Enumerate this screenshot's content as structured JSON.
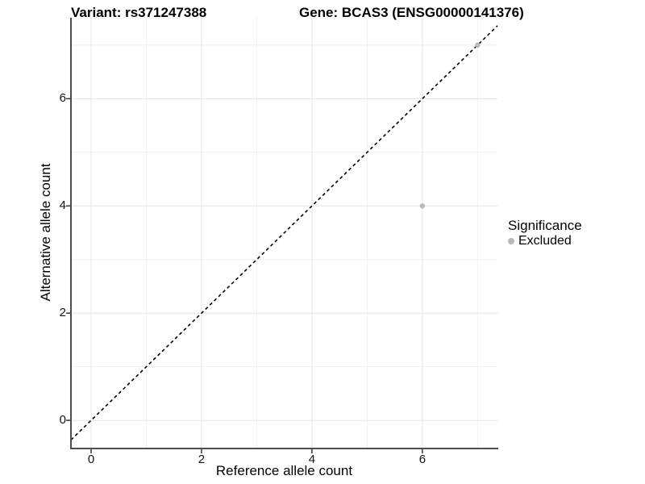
{
  "chart_data": {
    "type": "scatter",
    "title_left": "Variant: rs371247388",
    "title_right": "Gene: BCAS3 (ENSG00000141376)",
    "xlabel": "Reference allele count",
    "ylabel": "Alternative allele count",
    "xlim": [
      -0.365,
      7.36
    ],
    "ylim": [
      -0.51,
      7.51
    ],
    "x_ticks": [
      0,
      2,
      4,
      6
    ],
    "y_ticks": [
      0,
      2,
      4,
      6
    ],
    "x_minor": [
      1,
      3,
      5,
      7
    ],
    "y_minor": [
      1,
      3,
      5,
      7
    ],
    "grid": true,
    "legend_position": "right",
    "series": [
      {
        "name": "Excluded",
        "color": "#b8b8b8",
        "point_radius": 3.2,
        "points": [
          [
            6,
            4
          ],
          [
            7,
            7
          ]
        ]
      }
    ],
    "reference_line": {
      "label": "identity",
      "equation": "y = x",
      "style": "dashed",
      "color": "#000000",
      "width": 1.6,
      "dash": "4,3.5"
    },
    "colors": {
      "background": "#ffffff",
      "grid_major": "#e4e4e4",
      "grid_minor": "#f1f1f1",
      "axis_line": "#4d4d4d",
      "tick_mark": "#333333",
      "text": "#000000"
    }
  },
  "legend": {
    "title": "Significance",
    "items": [
      {
        "label": "Excluded",
        "color": "#b8b8b8"
      }
    ]
  }
}
